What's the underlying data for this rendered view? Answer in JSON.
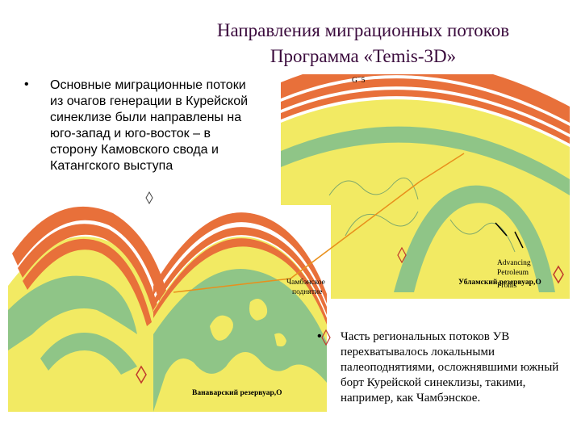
{
  "title": {
    "line1": "Направления миграционных потоков",
    "line2": "Программа «Temis-3D»"
  },
  "left_text": {
    "bullet": "•",
    "body": "Основные миграционные потоки из очагов генерации в Курейской синеклизе были направлены на юго-запад и юго-восток – в сторону Камовского свода и Катангского выступа"
  },
  "right_text": {
    "bullet": "•",
    "body": "Часть региональных потоков УВ перехватывалось локальными палеоподнятиями, осложнявшими южный борт Курейской синеклизы, такими, например, как Чамбэнское."
  },
  "labels": {
    "chamben_line1": "Чамбэнское",
    "chamben_line2": "поднятие",
    "ublam": "Убламский резервуар,O",
    "vanavar": "Ванаварский резервуар,O",
    "advancing": "Advancing",
    "petroleum": "Petroleum",
    "fronts": "Fronts"
  },
  "colors": {
    "title": "#3a0a3c",
    "orange_layer": "#e8703a",
    "yellow_fill": "#f2ea63",
    "green_reservoir": "#8fc587",
    "migration_line": "#e8901c",
    "marker": "#c0392b"
  }
}
